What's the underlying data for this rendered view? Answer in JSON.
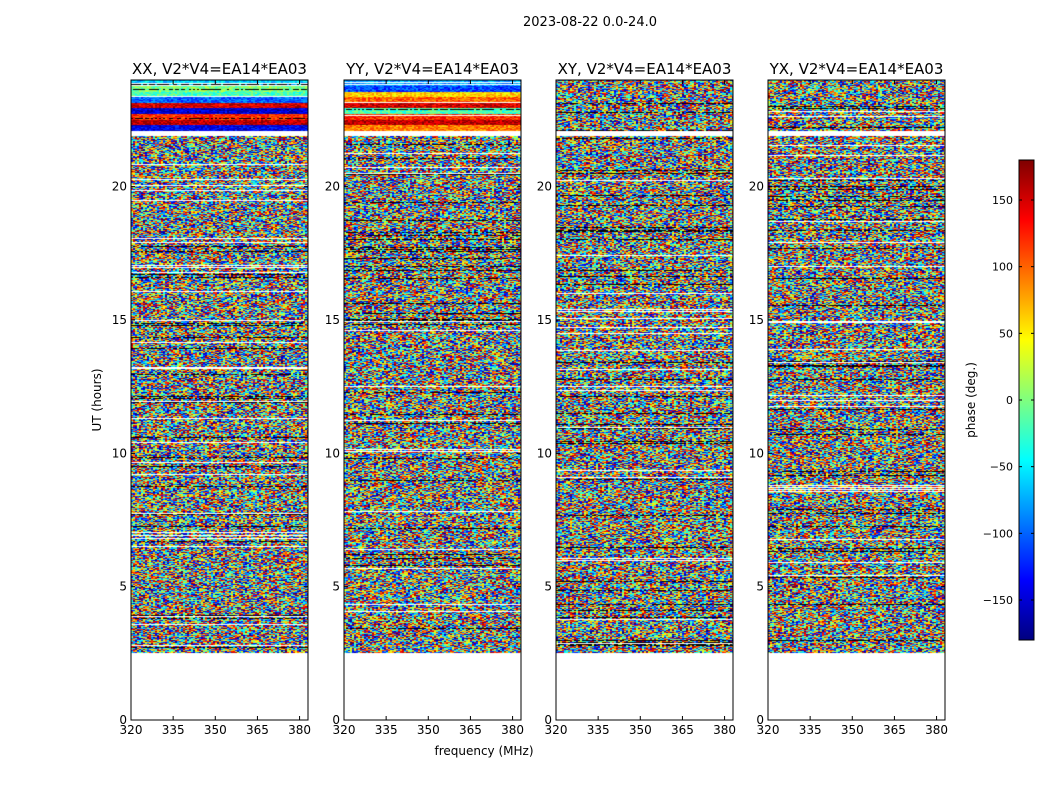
{
  "figure_title": "2023-08-22 0.0-24.0",
  "colors": {
    "jet": [
      "#00007f",
      "#0000ff",
      "#007fff",
      "#00ffff",
      "#7fff7f",
      "#ffff00",
      "#ff7f00",
      "#ff0000",
      "#7f0000"
    ],
    "flag": "#000000",
    "gap": "#ffffff"
  },
  "chart_data": {
    "type": "heatmap",
    "xlabel": "frequency (MHz)",
    "ylabel": "UT (hours)",
    "xlim": [
      320,
      383
    ],
    "ylim": [
      0,
      24
    ],
    "xticks": [
      320,
      335,
      350,
      365,
      380
    ],
    "yticks": [
      0,
      5,
      10,
      15,
      20
    ],
    "colorbar": {
      "label": "phase (deg.)",
      "vmin": -180,
      "vmax": 180,
      "ticks": [
        -150,
        -100,
        -50,
        0,
        50,
        100,
        150
      ],
      "tick_labels": [
        "−150",
        "−100",
        "−50",
        "0",
        "50",
        "100",
        "150"
      ]
    },
    "data_hours": [
      [
        2.5,
        21.9
      ],
      [
        22.1,
        24.0
      ]
    ],
    "gap_hours": [
      [
        0,
        2.5
      ],
      [
        21.9,
        22.1
      ]
    ],
    "panels": [
      {
        "title": "XX, V2*V4=EA14*EA03",
        "polarization": "XX",
        "top_band_phase_deg": [
          -60,
          0,
          -20,
          -100,
          150,
          -150,
          120,
          160,
          -140,
          40
        ]
      },
      {
        "title": "YY, V2*V4=EA14*EA03",
        "polarization": "YY",
        "top_band_phase_deg": [
          -80,
          -110,
          60,
          100,
          150,
          -20,
          120,
          160,
          90,
          140
        ]
      },
      {
        "title": "XY, V2*V4=EA14*EA03",
        "polarization": "XY",
        "top_band_phase_deg": []
      },
      {
        "title": "YX, V2*V4=EA14*EA03",
        "polarization": "YX",
        "top_band_phase_deg": []
      }
    ]
  }
}
